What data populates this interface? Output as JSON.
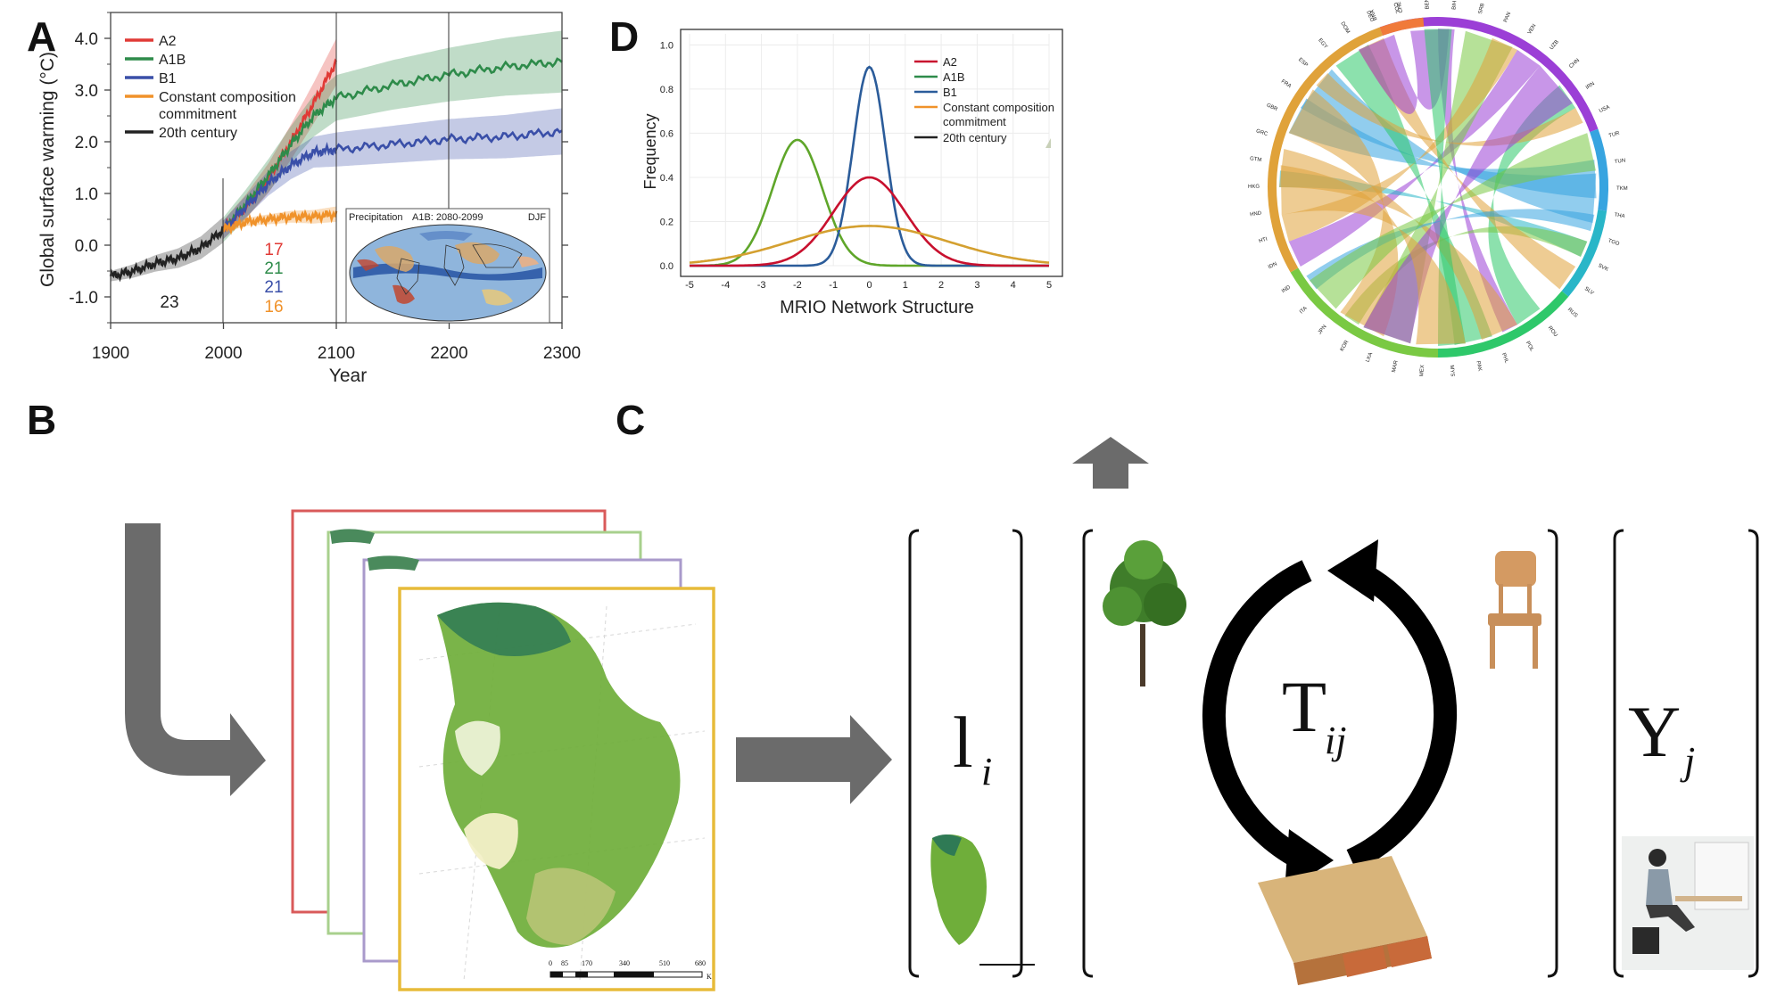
{
  "panels": {
    "a": "A",
    "b": "B",
    "c": "C",
    "d": "D"
  },
  "colors": {
    "a2": "#e03a36",
    "a1b": "#2e8b4a",
    "b1": "#3a4fa8",
    "constant": "#f0922a",
    "c20": "#222222",
    "d_a2": "#c8102e",
    "d_a1b": "#5fa62a",
    "d_b1": "#2b5c9a",
    "d_constant": "#d4a030"
  },
  "chart_data": [
    {
      "type": "line",
      "xlabel": "Year",
      "ylabel": "Global surface warming (°C)",
      "xlim": [
        1900,
        2300
      ],
      "ylim": [
        -1.5,
        4.5
      ],
      "x_ticks": [
        "1900",
        "2000",
        "2100",
        "2200",
        "2300"
      ],
      "y_ticks": [
        "4.0",
        "3.0",
        "2.0",
        "1.0",
        "0.0",
        "-1.0"
      ],
      "y_tick_values": [
        4.0,
        3.0,
        2.0,
        1.0,
        0.0,
        -1.0
      ],
      "x_tick_values": [
        1900,
        2000,
        2100,
        2200,
        2300
      ],
      "legend": "top-left",
      "legend_entries": [
        {
          "key": "a2",
          "label": "A2"
        },
        {
          "key": "a1b",
          "label": "A1B"
        },
        {
          "key": "b1",
          "label": "B1"
        },
        {
          "key": "constant",
          "label": "Constant composition"
        },
        {
          "key": "constant2",
          "label": "commitment"
        },
        {
          "key": "c20",
          "label": "20th century"
        }
      ],
      "series": [
        {
          "name": "20th century",
          "key": "c20",
          "x": [
            1900,
            1920,
            1940,
            1960,
            1980,
            2000
          ],
          "y": [
            -0.6,
            -0.5,
            -0.35,
            -0.25,
            -0.05,
            0.3
          ],
          "band": 0.25
        },
        {
          "name": "A2",
          "key": "a2",
          "x": [
            2000,
            2020,
            2040,
            2060,
            2080,
            2100
          ],
          "y": [
            0.3,
            0.75,
            1.3,
            2.0,
            2.75,
            3.55
          ],
          "band": 0.45
        },
        {
          "name": "A1B",
          "key": "a1b",
          "x": [
            2000,
            2020,
            2040,
            2060,
            2080,
            2100,
            2150,
            2200,
            2250,
            2300
          ],
          "y": [
            0.3,
            0.8,
            1.35,
            1.95,
            2.5,
            2.85,
            3.1,
            3.3,
            3.45,
            3.55
          ],
          "band": 0.6
        },
        {
          "name": "B1",
          "key": "b1",
          "x": [
            2000,
            2020,
            2040,
            2060,
            2080,
            2100,
            2150,
            2200,
            2250,
            2300
          ],
          "y": [
            0.3,
            0.75,
            1.2,
            1.55,
            1.8,
            1.85,
            1.95,
            2.05,
            2.1,
            2.2
          ],
          "band": 0.45
        },
        {
          "name": "Constant composition commitment",
          "key": "constant",
          "x": [
            2000,
            2020,
            2040,
            2060,
            2080,
            2100
          ],
          "y": [
            0.3,
            0.45,
            0.5,
            0.55,
            0.55,
            0.6
          ],
          "band": 0.15
        }
      ],
      "annotations": {
        "count_20c": "23",
        "count_a2": "17",
        "count_a1b": "21",
        "count_b1": "21",
        "count_const": "16"
      },
      "inset": {
        "label_left": "Precipitation",
        "label_mid": "A1B: 2080-2099",
        "label_right": "DJF"
      }
    },
    {
      "type": "line",
      "xlabel": "MRIO Network Structure",
      "ylabel": "Frequency",
      "xlim": [
        -5,
        5
      ],
      "ylim": [
        0,
        1.05
      ],
      "x_ticks": [
        "-5",
        "-4",
        "-3",
        "-2",
        "-1",
        "0",
        "1",
        "2",
        "3",
        "4",
        "5"
      ],
      "x_tick_values": [
        -5,
        -4,
        -3,
        -2,
        -1,
        0,
        1,
        2,
        3,
        4,
        5
      ],
      "y_ticks": [
        "0.0",
        "0.2",
        "0.4",
        "0.6",
        "0.8",
        "1.0"
      ],
      "y_tick_values": [
        0,
        0.2,
        0.4,
        0.6,
        0.8,
        1.0
      ],
      "legend": "top-right",
      "legend_entries": [
        {
          "key": "d_a2",
          "label": "A2"
        },
        {
          "key": "d_a1b",
          "label": "A1B"
        },
        {
          "key": "d_b1",
          "label": "B1"
        },
        {
          "key": "d_constant",
          "label": "Constant composition"
        },
        {
          "key": "d_constant2",
          "label": "commitment"
        },
        {
          "key": "c20",
          "label": "20th century"
        }
      ],
      "series": [
        {
          "name": "A1B",
          "key": "d_a1b",
          "mu": -2.0,
          "sigma": 0.7,
          "peak": 0.57
        },
        {
          "name": "B1",
          "key": "d_b1",
          "mu": 0.0,
          "sigma": 0.45,
          "peak": 0.9
        },
        {
          "name": "A2",
          "key": "d_a2",
          "mu": 0.0,
          "sigma": 1.0,
          "peak": 0.4
        },
        {
          "name": "Constant composition commitment",
          "key": "d_constant",
          "mu": 0.0,
          "sigma": 2.2,
          "peak": 0.18
        }
      ]
    }
  ],
  "map_scale": {
    "labels": [
      "0",
      "85",
      "170",
      "340",
      "510",
      "680"
    ],
    "unit": "K"
  },
  "matrix": {
    "l_main": "l",
    "l_sub": "i",
    "t_main": "T",
    "t_sub": "ij",
    "y_main": "Y",
    "y_sub": "j"
  },
  "chord_labels": [
    "BRA",
    "CHE",
    "BEN",
    "BIH",
    "SRB",
    "PAN",
    "VEN",
    "UZB",
    "CHN",
    "IRN",
    "USA",
    "TUR",
    "TUN",
    "TKM",
    "THA",
    "TGO",
    "SVK",
    "SLV",
    "RUS",
    "ROU",
    "POL",
    "PHL",
    "PAK",
    "MYS",
    "MEX",
    "MAR",
    "LKA",
    "KOR",
    "JPN",
    "ITA",
    "IND",
    "IDN",
    "HTI",
    "HND",
    "HKG",
    "GTM",
    "GRC",
    "GBR",
    "FRA",
    "ESP",
    "EGY",
    "DOM",
    "DEU",
    "COL"
  ]
}
